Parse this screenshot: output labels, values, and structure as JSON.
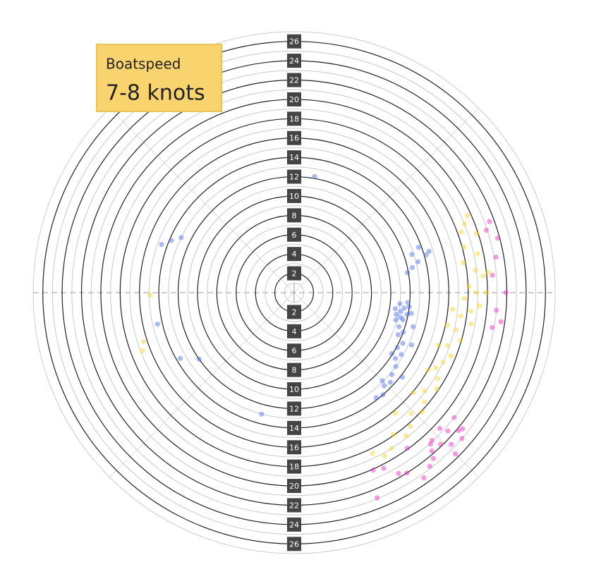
{
  "chart_data": {
    "type": "polar-scatter",
    "title": "Boatspeed",
    "subtitle": "7-8 knots",
    "rlim": [
      0,
      27
    ],
    "rticks": [
      2,
      4,
      6,
      8,
      10,
      12,
      14,
      16,
      18,
      20,
      22,
      24,
      26
    ],
    "theta_direction": "clockwise",
    "series": [
      {
        "color": "#4466e8",
        "theta": [
          96,
          98,
          100,
          102,
          104,
          97,
          99,
          101,
          103,
          95,
          100,
          105,
          108,
          110,
          112,
          115,
          118,
          120,
          123,
          126,
          130,
          133,
          136,
          139,
          142,
          106,
          114,
          122,
          128,
          135,
          70,
          72,
          74,
          76,
          78,
          80,
          73,
          293,
          290,
          296,
          257,
          235,
          240,
          10,
          195
        ],
        "r": [
          11.0,
          11.5,
          11.2,
          10.8,
          11.6,
          12.0,
          10.6,
          11.9,
          11.3,
          11.8,
          12.3,
          10.9,
          11.4,
          12.0,
          11.6,
          12.4,
          12.1,
          12.8,
          12.5,
          13.0,
          13.2,
          13.6,
          13.4,
          14.0,
          13.8,
          12.8,
          13.3,
          11.9,
          14.2,
          12.9,
          13.7,
          12.8,
          14.2,
          13.2,
          12.5,
          11.9,
          14.6,
          13.8,
          14.6,
          13.0,
          14.5,
          12.0,
          13.6,
          12.2,
          13.0
        ]
      },
      {
        "color": "#f7d21a",
        "theta": [
          66,
          68,
          70,
          72,
          75,
          78,
          80,
          83,
          85,
          88,
          90,
          92,
          94,
          96,
          98,
          100,
          103,
          106,
          109,
          112,
          115,
          118,
          121,
          124,
          127,
          130,
          133,
          136,
          139,
          142,
          145,
          148,
          151,
          154,
          84,
          90,
          96,
          102,
          110,
          120,
          130,
          140,
          249,
          269,
          252
        ],
        "r": [
          19.6,
          19.0,
          18.4,
          19.8,
          18.2,
          19.4,
          17.8,
          18.9,
          19.6,
          18.1,
          18.8,
          17.6,
          19.2,
          18.4,
          17.4,
          18.6,
          17.2,
          17.9,
          16.8,
          17.5,
          17.0,
          16.6,
          17.3,
          17.8,
          16.9,
          17.6,
          18.1,
          17.4,
          18.3,
          18.8,
          17.9,
          19.0,
          19.3,
          18.5,
          20.2,
          19.9,
          16.5,
          16.2,
          15.9,
          16.0,
          16.1,
          16.3,
          16.8,
          14.9,
          16.4
        ]
      },
      {
        "color": "#f020c0",
        "theta": [
          70,
          72,
          75,
          80,
          85,
          90,
          95,
          98,
          100,
          128,
          130,
          132,
          134,
          136,
          138,
          140,
          133,
          137,
          131,
          139,
          135,
          142,
          145,
          148,
          150,
          153,
          156,
          158,
          129,
          144
        ],
        "r": [
          21.5,
          20.9,
          21.8,
          21.2,
          20.6,
          21.9,
          21.0,
          21.6,
          20.8,
          21.0,
          22.2,
          21.4,
          22.6,
          21.8,
          21.1,
          22.4,
          20.6,
          20.9,
          23.0,
          21.7,
          23.6,
          22.8,
          23.4,
          22.0,
          21.6,
          20.4,
          20.1,
          22.9,
          22.4,
          19.9
        ]
      }
    ]
  }
}
